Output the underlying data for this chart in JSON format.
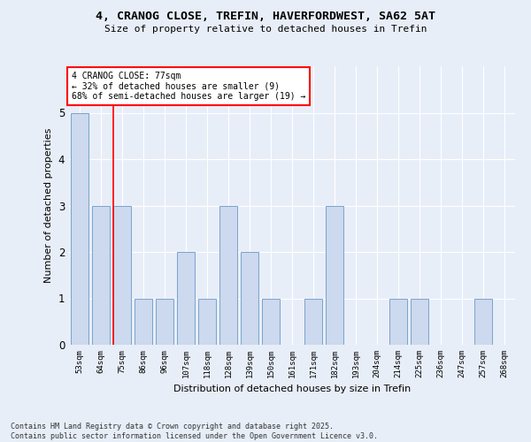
{
  "title_line1": "4, CRANOG CLOSE, TREFIN, HAVERFORDWEST, SA62 5AT",
  "title_line2": "Size of property relative to detached houses in Trefin",
  "xlabel": "Distribution of detached houses by size in Trefin",
  "ylabel": "Number of detached properties",
  "categories": [
    "53sqm",
    "64sqm",
    "75sqm",
    "86sqm",
    "96sqm",
    "107sqm",
    "118sqm",
    "128sqm",
    "139sqm",
    "150sqm",
    "161sqm",
    "171sqm",
    "182sqm",
    "193sqm",
    "204sqm",
    "214sqm",
    "225sqm",
    "236sqm",
    "247sqm",
    "257sqm",
    "268sqm"
  ],
  "values": [
    5,
    3,
    3,
    1,
    1,
    2,
    1,
    3,
    2,
    1,
    0,
    1,
    3,
    0,
    0,
    1,
    1,
    0,
    0,
    1,
    0
  ],
  "bar_color": "#ccd9ee",
  "bar_edge_color": "#7aa4cc",
  "ylim": [
    0,
    6
  ],
  "yticks": [
    0,
    1,
    2,
    3,
    4,
    5
  ],
  "red_line_x": 2,
  "annotation_title": "4 CRANOG CLOSE: 77sqm",
  "annotation_line2": "← 32% of detached houses are smaller (9)",
  "annotation_line3": "68% of semi-detached houses are larger (19) →",
  "footer_line1": "Contains HM Land Registry data © Crown copyright and database right 2025.",
  "footer_line2": "Contains public sector information licensed under the Open Government Licence v3.0.",
  "bg_color": "#e8eef8",
  "plot_bg_color": "#e8eef8"
}
